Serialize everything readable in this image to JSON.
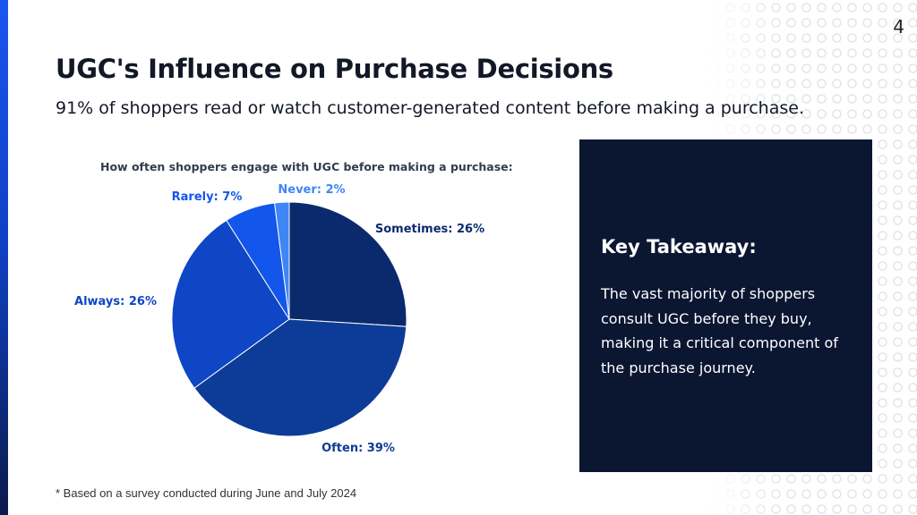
{
  "slide": {
    "page_number": "4",
    "title": "UGC's Influence on Purchase Decisions",
    "subtitle": "91% of shoppers read or watch customer-generated content before making a purchase.",
    "footnote": "* Based on a survey conducted during June and July 2024"
  },
  "takeaway": {
    "heading": "Key Takeaway:",
    "body": "The vast majority of shoppers consult UGC before they buy, making it a critical component of the purchase journey."
  },
  "chart_data": {
    "type": "pie",
    "title": "How often shoppers engage with UGC before making a purchase:",
    "slices": [
      {
        "label": "Sometimes: 26%",
        "value": 26,
        "color": "#0b2a6e"
      },
      {
        "label": "Often: 39%",
        "value": 39,
        "color": "#0d3b98"
      },
      {
        "label": "Always: 26%",
        "value": 26,
        "color": "#0f46c6"
      },
      {
        "label": "Rarely: 7%",
        "value": 7,
        "color": "#1256ec"
      },
      {
        "label": "Never: 2%",
        "value": 2,
        "color": "#3f86f5"
      }
    ],
    "label_colors": [
      "#0b2a6e",
      "#0d3b98",
      "#0f46c6",
      "#1256ec",
      "#3f86f5"
    ],
    "start_angle_deg": 0,
    "direction": "clockwise",
    "legend": "none"
  }
}
